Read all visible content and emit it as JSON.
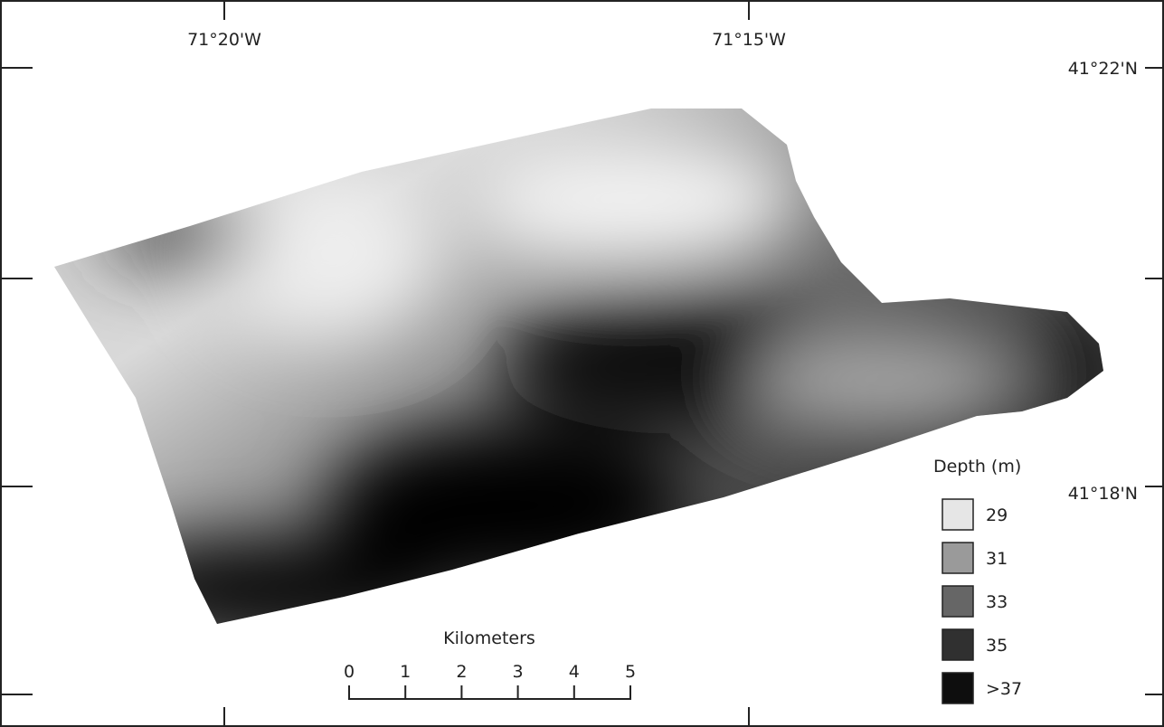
{
  "map": {
    "longitude_labels": [
      "71°20'W",
      "71°15'W"
    ],
    "latitude_labels": [
      "41°22'N",
      "41°18'N"
    ],
    "legend": {
      "title": "Depth (m)",
      "items": [
        {
          "label": "29",
          "color": "#e6e6e6"
        },
        {
          "label": "31",
          "color": "#9a9a9a"
        },
        {
          "label": "33",
          "color": "#666666"
        },
        {
          "label": "35",
          "color": "#303030"
        },
        {
          "label": ">37",
          "color": "#0e0e0e"
        }
      ]
    },
    "scale_bar": {
      "title": "Kilometers",
      "ticks": [
        0,
        1,
        2,
        3,
        4,
        5
      ]
    }
  }
}
